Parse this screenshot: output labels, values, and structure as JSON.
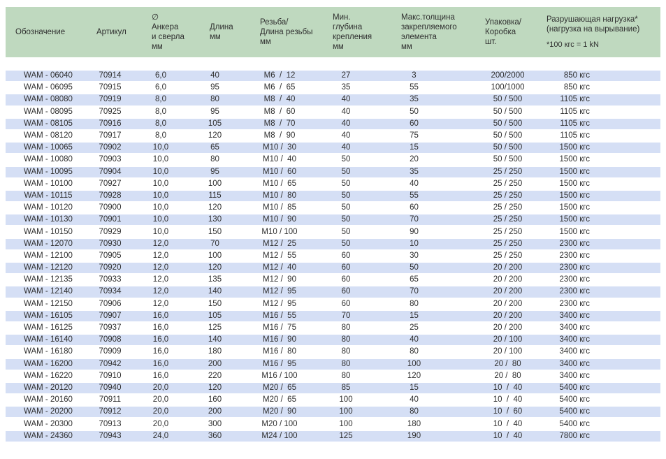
{
  "chart_data": {
    "type": "table",
    "columns": [
      {
        "key": "designation",
        "label": "Обозначение"
      },
      {
        "key": "article",
        "label": "Артикул"
      },
      {
        "key": "diameter",
        "label": "∅\nАнкера\nи сверла\nмм"
      },
      {
        "key": "length",
        "label": "Длина\nмм"
      },
      {
        "key": "thread",
        "label": "Резьба/\nДлина резьбы\nмм"
      },
      {
        "key": "min-depth",
        "label": "Мин.\nглубина\nкрепления\nмм"
      },
      {
        "key": "max-thickness",
        "label": "Макс.толщина\nзакрепляемого\nэлемента\nмм"
      },
      {
        "key": "packaging",
        "label": "Упаковка/\nКоробка\nшт."
      },
      {
        "key": "load",
        "label": "Разрушающая нагрузка*\n(нагрузка на вырывание)"
      }
    ],
    "load_note": "*100 кгс = 1 kN",
    "rows": [
      [
        "WAM - 06040",
        "70914",
        "6,0",
        "40",
        "M6  /  12",
        "27",
        "3",
        "200/2000",
        "850 кгс"
      ],
      [
        "WAM - 06095",
        "70915",
        "6,0",
        "95",
        "M6  /  65",
        "35",
        "55",
        "100/1000",
        "850 кгс"
      ],
      [
        "WAM - 08080",
        "70919",
        "8,0",
        "80",
        "M8  /  40",
        "40",
        "35",
        "50 / 500",
        "1105 кгс"
      ],
      [
        "WAM - 08095",
        "70925",
        "8,0",
        "95",
        "M8  /  60",
        "40",
        "50",
        "50 / 500",
        "1105 кгс"
      ],
      [
        "WAM - 08105",
        "70916",
        "8,0",
        "105",
        "M8  /  70",
        "40",
        "60",
        "50 / 500",
        "1105 кгс"
      ],
      [
        "WAM - 08120",
        "70917",
        "8,0",
        "120",
        "M8  /  90",
        "40",
        "75",
        "50 / 500",
        "1105 кгс"
      ],
      [
        "WAM - 10065",
        "70902",
        "10,0",
        "65",
        "M10 /  30",
        "40",
        "15",
        "50 / 500",
        "1500 кгс"
      ],
      [
        "WAM - 10080",
        "70903",
        "10,0",
        "80",
        "M10 /  40",
        "50",
        "20",
        "50 / 500",
        "1500 кгс"
      ],
      [
        "WAM - 10095",
        "70904",
        "10,0",
        "95",
        "M10 /  60",
        "50",
        "35",
        "25 / 250",
        "1500 кгс"
      ],
      [
        "WAM - 10100",
        "70927",
        "10,0",
        "100",
        "M10 /  65",
        "50",
        "40",
        "25 / 250",
        "1500 кгс"
      ],
      [
        "WAM - 10115",
        "70928",
        "10,0",
        "115",
        "M10 /  80",
        "50",
        "55",
        "25 / 250",
        "1500 кгс"
      ],
      [
        "WAM - 10120",
        "70900",
        "10,0",
        "120",
        "M10 /  85",
        "50",
        "60",
        "25 / 250",
        "1500 кгс"
      ],
      [
        "WAM - 10130",
        "70901",
        "10,0",
        "130",
        "M10 /  90",
        "50",
        "70",
        "25 / 250",
        "1500 кгс"
      ],
      [
        "WAM - 10150",
        "70929",
        "10,0",
        "150",
        "M10 / 100",
        "50",
        "90",
        "25 / 250",
        "1500 кгс"
      ],
      [
        "WAM - 12070",
        "70930",
        "12,0",
        "70",
        "M12 /  25",
        "50",
        "10",
        "25 / 250",
        "2300 кгс"
      ],
      [
        "WAM - 12100",
        "70905",
        "12,0",
        "100",
        "M12 /  55",
        "60",
        "30",
        "25 / 250",
        "2300 кгс"
      ],
      [
        "WAM - 12120",
        "70920",
        "12,0",
        "120",
        "M12 /  40",
        "60",
        "50",
        "20 / 200",
        "2300 кгс"
      ],
      [
        "WAM - 12135",
        "70933",
        "12,0",
        "135",
        "M12 /  90",
        "60",
        "65",
        "20 / 200",
        "2300 кгс"
      ],
      [
        "WAM - 12140",
        "70934",
        "12,0",
        "140",
        "M12 /  95",
        "60",
        "70",
        "20 / 200",
        "2300 кгс"
      ],
      [
        "WAM - 12150",
        "70906",
        "12,0",
        "150",
        "M12 /  95",
        "60",
        "80",
        "20 / 200",
        "2300 кгс"
      ],
      [
        "WAM - 16105",
        "70907",
        "16,0",
        "105",
        "M16 /  55",
        "70",
        "15",
        "20 / 200",
        "3400 кгс"
      ],
      [
        "WAM - 16125",
        "70937",
        "16,0",
        "125",
        "M16 /  75",
        "80",
        "25",
        "20 / 200",
        "3400 кгс"
      ],
      [
        "WAM - 16140",
        "70908",
        "16,0",
        "140",
        "M16 /  90",
        "80",
        "40",
        "20 / 100",
        "3400 кгс"
      ],
      [
        "WAM - 16180",
        "70909",
        "16,0",
        "180",
        "M16 /  80",
        "80",
        "80",
        "20 / 100",
        "3400 кгс"
      ],
      [
        "WAM - 16200",
        "70942",
        "16,0",
        "200",
        "M16 /  95",
        "80",
        "100",
        "20 /  80",
        "3400 кгс"
      ],
      [
        "WAM - 16220",
        "70910",
        "16,0",
        "220",
        "M16 / 100",
        "80",
        "120",
        "20 /  80",
        "3400 кгс"
      ],
      [
        "WAM - 20120",
        "70940",
        "20,0",
        "120",
        "M20 /  65",
        "85",
        "15",
        "10  /  40",
        "5400 кгс"
      ],
      [
        "WAM - 20160",
        "70911",
        "20,0",
        "160",
        "M20 /  65",
        "100",
        "40",
        "10  /  40",
        "5400 кгс"
      ],
      [
        "WAM - 20200",
        "70912",
        "20,0",
        "200",
        "M20 /  90",
        "100",
        "80",
        "10  /  60",
        "5400 кгс"
      ],
      [
        "WAM - 20300",
        "70913",
        "20,0",
        "300",
        "M20 / 100",
        "100",
        "180",
        "10  /  40",
        "5400 кгс"
      ],
      [
        "WAM - 24360",
        "70943",
        "24,0",
        "360",
        "M24 / 100",
        "125",
        "190",
        "10  /  40",
        "7800 кгс"
      ]
    ]
  },
  "colors": {
    "header_bg": "#bfd9bf",
    "row_alt_bg": "#d5dff5",
    "text": "#2f2f2f"
  }
}
